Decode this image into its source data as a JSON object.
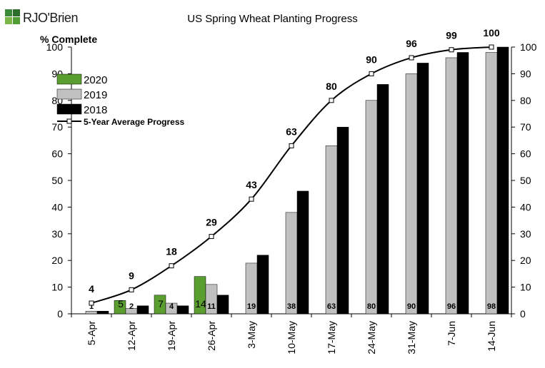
{
  "brand": {
    "name": "RJO'Brien",
    "mark_colors": [
      "#3a8a3a",
      "#2d6e2d",
      "#7ab648",
      "#4f9d34"
    ],
    "text_color": "#1a1a1a"
  },
  "chart_data": {
    "type": "bar",
    "title": "US Spring Wheat Planting Progress",
    "ylabel": "% Complete",
    "xlabel": "",
    "ylim": [
      0,
      100
    ],
    "yticks": [
      0,
      10,
      20,
      30,
      40,
      50,
      60,
      70,
      80,
      90,
      100
    ],
    "secondary_yaxis": true,
    "grid": false,
    "legend_position": "top-left",
    "categories": [
      "5-Apr",
      "12-Apr",
      "19-Apr",
      "26-Apr",
      "3-May",
      "10-May",
      "17-May",
      "24-May",
      "31-May",
      "7-Jun",
      "14-Jun"
    ],
    "series": [
      {
        "name": "2020",
        "kind": "bar",
        "color": "#5a9e2f",
        "values": [
          null,
          5,
          7,
          14,
          null,
          null,
          null,
          null,
          null,
          null,
          null
        ],
        "labels": [
          "",
          "5",
          "7",
          "14",
          "",
          "",
          "",
          "",
          "",
          "",
          ""
        ]
      },
      {
        "name": "2019",
        "kind": "bar",
        "color": "#c0c0c0",
        "values": [
          1,
          2,
          4,
          11,
          19,
          38,
          63,
          80,
          90,
          96,
          98
        ],
        "labels": [
          "1",
          "2",
          "4",
          "11",
          "19",
          "38",
          "63",
          "80",
          "90",
          "96",
          "98"
        ]
      },
      {
        "name": "2018",
        "kind": "bar",
        "color": "#000000",
        "values": [
          1,
          3,
          3,
          7,
          22,
          46,
          70,
          86,
          94,
          98,
          100
        ],
        "labels": []
      },
      {
        "name": "5-Year Average Progress",
        "kind": "line",
        "color": "#000000",
        "values": [
          4,
          9,
          18,
          29,
          43,
          63,
          80,
          90,
          96,
          99,
          100
        ],
        "labels": [
          "4",
          "9",
          "18",
          "29",
          "43",
          "63",
          "80",
          "90",
          "96",
          "99",
          "100"
        ]
      }
    ]
  }
}
